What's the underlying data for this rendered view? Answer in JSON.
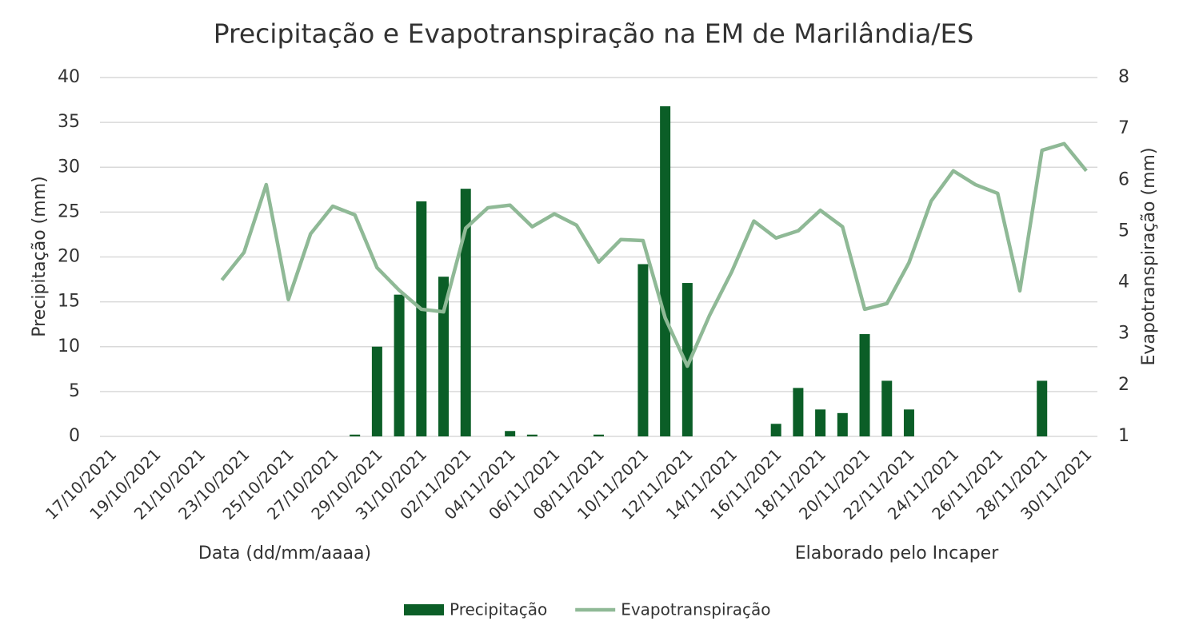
{
  "chart_data": {
    "type": "bar_line",
    "title": "Precipitação e Evapotranspiração na EM de Marilândia/ES",
    "ylabel": "Precipitação (mm)",
    "y2label": "Evapotranspiração (mm)",
    "annotations": [
      "Data (dd/mm/aaaa)",
      "Elaborado pelo Incaper"
    ],
    "categories": [
      "17/10/2021",
      null,
      "19/10/2021",
      null,
      "21/10/2021",
      null,
      "23/10/2021",
      null,
      "25/10/2021",
      null,
      "27/10/2021",
      null,
      "29/10/2021",
      null,
      "31/10/2021",
      null,
      "02/11/2021",
      null,
      "04/11/2021",
      null,
      "06/11/2021",
      null,
      "08/11/2021",
      null,
      "10/11/2021",
      null,
      "12/11/2021",
      null,
      "14/11/2021",
      null,
      "16/11/2021",
      null,
      "18/11/2021",
      null,
      "20/11/2021",
      null,
      "22/11/2021",
      null,
      "24/11/2021",
      null,
      "26/11/2021",
      null,
      "28/11/2021",
      null,
      "30/11/2021"
    ],
    "series": [
      {
        "name": "Precipitação",
        "color": "#0b5e27",
        "kind": "bar",
        "values": [
          0,
          0,
          0,
          0,
          0,
          0,
          0,
          0,
          0,
          0,
          0,
          0.2,
          10,
          15.8,
          26.2,
          17.8,
          27.6,
          0,
          0.6,
          0.2,
          0,
          0,
          0.2,
          0,
          19.2,
          36.8,
          17.1,
          0,
          0,
          0,
          1.4,
          5.4,
          3.0,
          2.6,
          11.4,
          6.2,
          3.0,
          0,
          0,
          0,
          0,
          0,
          6.2,
          0,
          0
        ]
      },
      {
        "name": "Evapotranspiração",
        "color": "#8fb996",
        "kind": "line",
        "axis": "y2",
        "values": [
          null,
          null,
          null,
          null,
          null,
          4.05,
          4.59,
          5.91,
          3.67,
          4.95,
          5.49,
          5.32,
          4.29,
          3.85,
          3.48,
          3.43,
          5.06,
          5.46,
          5.51,
          5.09,
          5.34,
          5.12,
          4.4,
          4.84,
          4.82,
          3.31,
          2.37,
          3.36,
          4.21,
          5.2,
          4.87,
          5.01,
          5.41,
          5.09,
          3.48,
          3.59,
          4.39,
          5.59,
          6.18,
          5.91,
          5.74,
          3.84,
          6.58,
          6.71,
          6.18
        ]
      }
    ],
    "ylim": [
      0,
      40
    ],
    "yticks": [
      0,
      5,
      10,
      15,
      20,
      25,
      30,
      35,
      40
    ],
    "y2lim": [
      1,
      8
    ],
    "y2ticks": [
      1,
      2,
      3,
      4,
      5,
      6,
      7,
      8
    ],
    "grid": true,
    "legend": "bottom"
  }
}
